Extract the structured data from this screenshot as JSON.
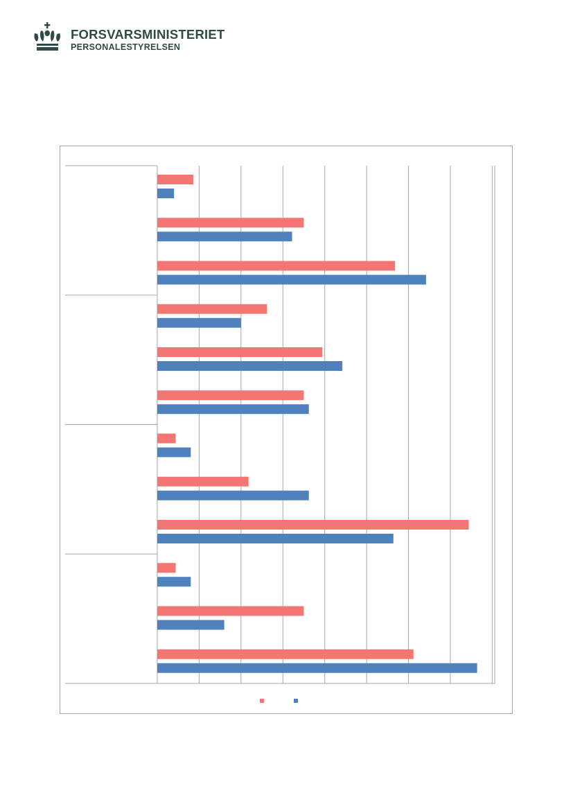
{
  "header": {
    "org_name": "FORSVARSMINISTERIET",
    "unit_name": "PERSONALESTYRELSEN",
    "brand_color": "#2f4a47",
    "emblem_icon": "crown-icon"
  },
  "chart_data": {
    "type": "bar",
    "orientation": "horizontal",
    "categories": [
      "",
      "",
      "",
      "",
      "",
      "",
      "",
      "",
      "",
      "",
      "",
      ""
    ],
    "groups": [
      "",
      "",
      "",
      ""
    ],
    "series": [
      {
        "values": [
          4.3,
          17.5,
          28.4,
          13.1,
          19.7,
          17.5,
          2.2,
          10.9,
          37.2,
          2.2,
          17.5,
          30.6
        ],
        "color": "#f47673"
      },
      {
        "values": [
          2.0,
          16.1,
          32.1,
          10.0,
          22.1,
          18.1,
          4.0,
          18.1,
          28.2,
          4.0,
          8.0,
          38.2
        ],
        "color": "#4f81bd"
      }
    ],
    "xlim": [
      0,
      40.3
    ],
    "gridlines_x": true,
    "legend": "bottom-center",
    "title": "",
    "xlabel": "",
    "ylabel": ""
  }
}
